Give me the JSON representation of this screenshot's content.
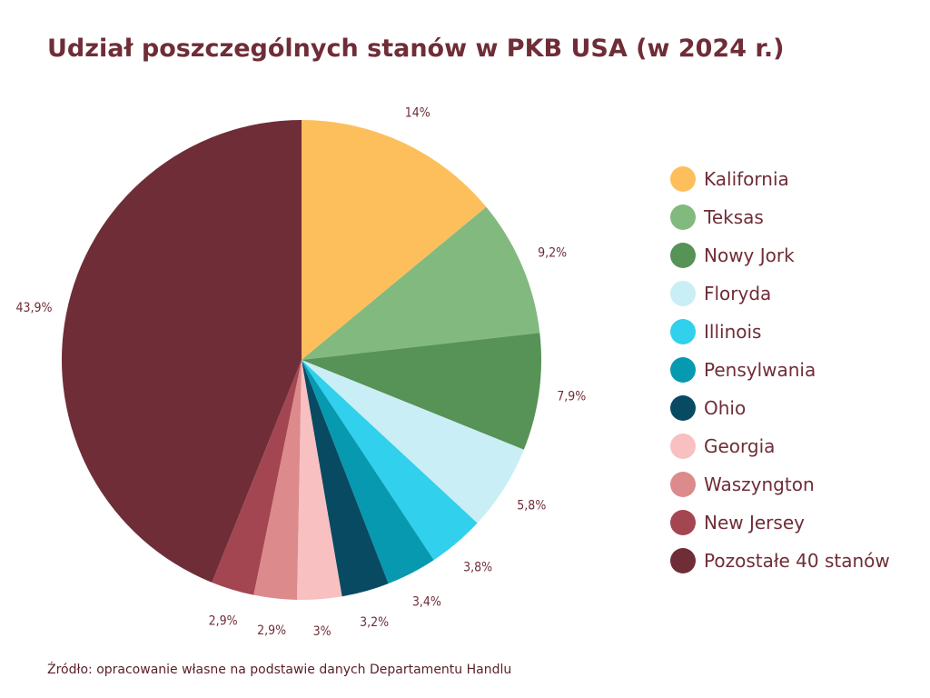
{
  "title": "Udział poszczególnych stanów w PKB USA (w 2024 r.)",
  "source": "Źródło: opracowanie własne na podstawie danych Departamentu Handlu",
  "chart_data": {
    "type": "pie",
    "title": "Udział poszczególnych stanów w PKB USA (w 2024 r.)",
    "legend_position": "right",
    "unit": "%",
    "slices": [
      {
        "label": "Kalifornia",
        "value": 14,
        "display": "14%",
        "color": "#fdbf5c"
      },
      {
        "label": "Teksas",
        "value": 9.2,
        "display": "9,2%",
        "color": "#82b97f"
      },
      {
        "label": "Nowy Jork",
        "value": 7.9,
        "display": "7,9%",
        "color": "#579256"
      },
      {
        "label": "Floryda",
        "value": 5.8,
        "display": "5,8%",
        "color": "#c9eef5"
      },
      {
        "label": "Illinois",
        "value": 3.8,
        "display": "3,8%",
        "color": "#31d0ec"
      },
      {
        "label": "Pensylwania",
        "value": 3.4,
        "display": "3,4%",
        "color": "#0799b0"
      },
      {
        "label": "Ohio",
        "value": 3.2,
        "display": "3,2%",
        "color": "#084a62"
      },
      {
        "label": "Georgia",
        "value": 3,
        "display": "3%",
        "color": "#f9c0c1"
      },
      {
        "label": "Waszyngton",
        "value": 2.9,
        "display": "2,9%",
        "color": "#dd8a8c"
      },
      {
        "label": "New Jersey",
        "value": 2.9,
        "display": "2,9%",
        "color": "#a44651"
      },
      {
        "label": "Pozostałe 40 stanów",
        "value": 43.9,
        "display": "43,9%",
        "color": "#6f2d37"
      }
    ]
  }
}
